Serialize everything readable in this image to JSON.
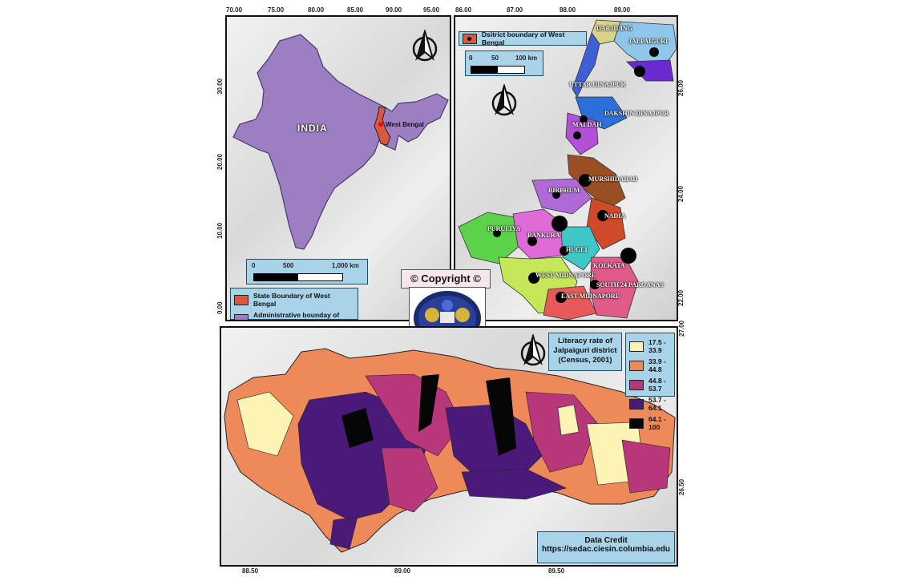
{
  "india_map": {
    "country_label": "INDIA",
    "state_label": "West Bengal",
    "x_ticks": [
      "70.00",
      "75.00",
      "80.00",
      "85.00",
      "90.00",
      "95.00"
    ],
    "y_ticks": [
      "30.00",
      "20.00",
      "10.00",
      "0.00"
    ],
    "scale": {
      "zero": "0",
      "mid": "500",
      "end": "1,000 km"
    },
    "legend": [
      {
        "label": "State Boundary of West Bengal",
        "color": "#d9583f"
      },
      {
        "label": "Administrative bounday of India",
        "color": "#9b7fc2"
      }
    ]
  },
  "wb_map": {
    "x_ticks": [
      "86.00",
      "87.00",
      "88.00",
      "89.00"
    ],
    "y_ticks": [
      "26.00",
      "24.00",
      "22.00"
    ],
    "legend_label": "Dsitrict boundary of West Bengal",
    "scale": {
      "zero": "0",
      "mid": "50",
      "end": "100 km"
    },
    "districts": [
      "DARJILING",
      "JALPAIGURI",
      "UTTAR DINAJPUR",
      "DAKSHIN DINAJPUR",
      "MALDAH",
      "MURSHIDABAD",
      "BIRBHUM",
      "NADIA",
      "PURULIYA",
      "BANKURA",
      "HUGLI",
      "KOLKATA",
      "WEST MIDNAPORE",
      "SOUTH 24 PARGANAS",
      "EAST MIDNAPORE"
    ]
  },
  "copyright": {
    "text": "© Copyright ©"
  },
  "jalpaiguri_map": {
    "x_ticks": [
      "88.50",
      "89.00",
      "89.50"
    ],
    "y_ticks": [
      "27.00",
      "26.50"
    ],
    "title": "Literacy rate of Jalpaiguri district (Census, 2001)",
    "legend": [
      {
        "label": "17.5 - 33.9",
        "color": "#fbf4b4"
      },
      {
        "label": "33.9 - 44.8",
        "color": "#ee8a5a"
      },
      {
        "label": "44.8 - 53.7",
        "color": "#b8367a"
      },
      {
        "label": "53.7 - 64.1",
        "color": "#4a1a7a"
      },
      {
        "label": "64.1 - 100",
        "color": "#050505"
      }
    ],
    "credit_title": "Data Credit",
    "credit_url": "https://sedac.ciesin.columbia.edu"
  }
}
